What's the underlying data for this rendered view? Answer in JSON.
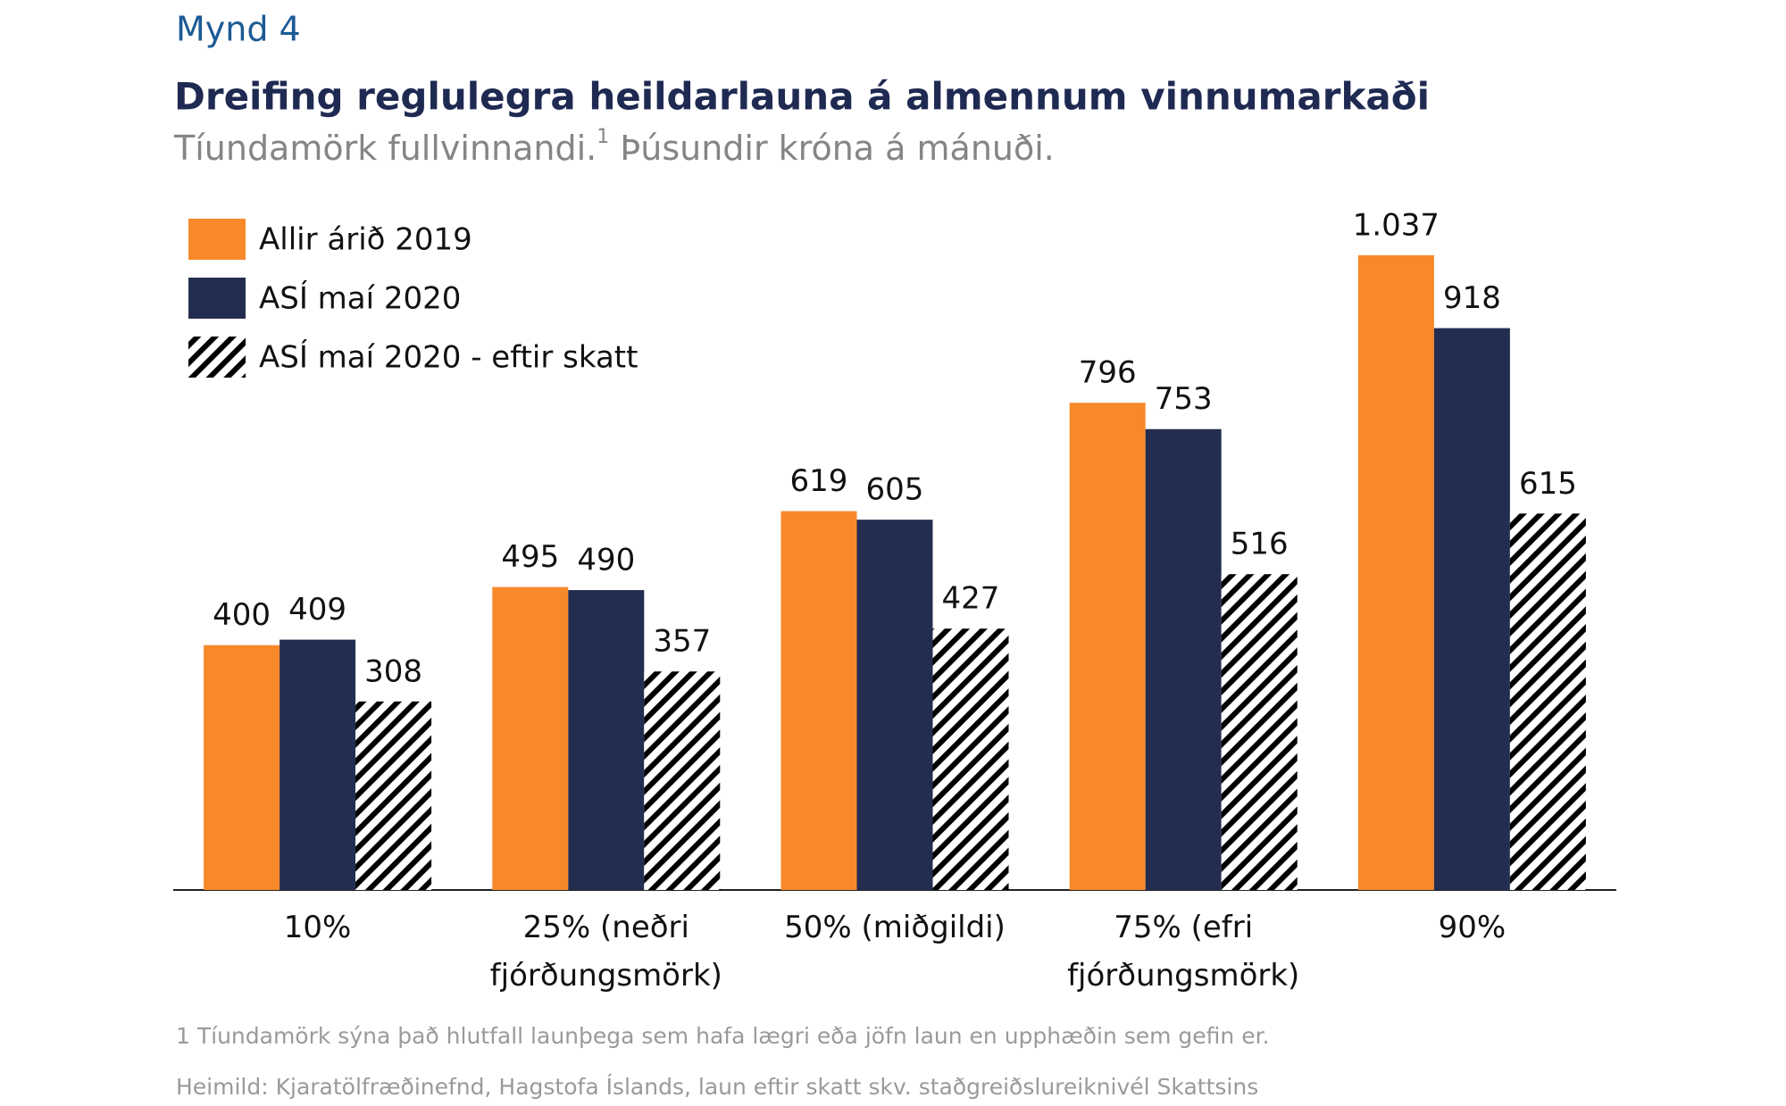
{
  "figure_label": "Mynd 4",
  "chart_data": {
    "type": "bar",
    "title": "Dreifing reglulegra heildarlauna á almennum vinnumarkaði",
    "subtitle": "Tíundamörk fullvinnandi.",
    "subtitle_footnote_ref": "1",
    "subtitle_continued": "Þúsundir króna á mánuði.",
    "categories": [
      "10%",
      "25% (neðri\nfjórðungsmörk)",
      "50% (miðgildi)",
      "75% (efri\nfjórðungsmörk)",
      "90%"
    ],
    "series": [
      {
        "name": "Allir árið 2019",
        "color": "#f7892a",
        "values": [
          400,
          495,
          619,
          796,
          1037
        ],
        "value_labels": [
          "400",
          "495",
          "619",
          "796",
          "1.037"
        ]
      },
      {
        "name": "ASÍ maí 2020",
        "color": "#232d50",
        "values": [
          409,
          490,
          605,
          753,
          918
        ]
      },
      {
        "name": "ASÍ maí 2020 - eftir skatt",
        "color": "#000000",
        "pattern": "hatch",
        "values": [
          308,
          357,
          427,
          516,
          615
        ]
      }
    ],
    "legend": "top-left",
    "footnotes": [
      "1 Tíundamörk sýna það hlutfall launþega sem hafa lægri eða jöfn laun en upphæðin sem gefin er.",
      "Heimild: Kjaratölfræðinefnd, Hagstofa Íslands, laun eftir skatt skv. staðgreiðslureiknivél Skattsins"
    ]
  }
}
